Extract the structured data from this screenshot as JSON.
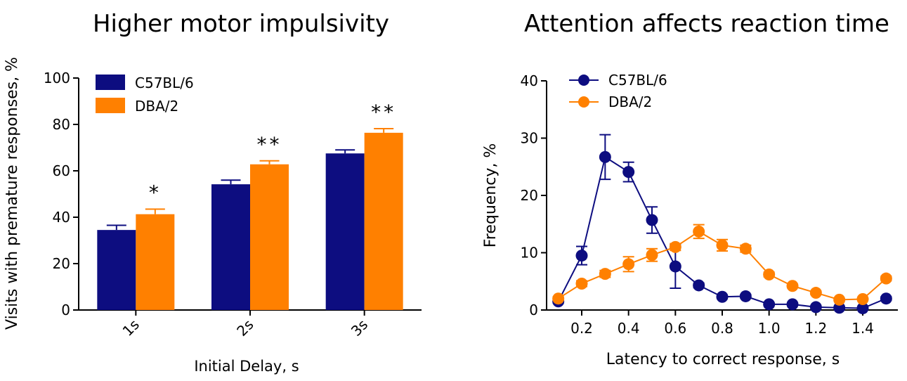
{
  "colors": {
    "c57": "#0d0d80",
    "dba": "#ff8000"
  },
  "chart_data": [
    {
      "type": "bar",
      "title": "Higher motor impulsivity",
      "xlabel": "Initial Delay, s",
      "ylabel": "Visits with premature responses, %",
      "ylim": [
        0,
        100
      ],
      "yticks": [
        0,
        20,
        40,
        60,
        80,
        100
      ],
      "categories": [
        "1s",
        "2s",
        "3s"
      ],
      "legend_position": "top-left",
      "series": [
        {
          "name": "C57BL/6",
          "color": "#0d0d80",
          "values": [
            34.5,
            54.2,
            67.5
          ],
          "errors": [
            2.0,
            1.8,
            1.5
          ]
        },
        {
          "name": "DBA/2",
          "color": "#ff8000",
          "values": [
            41.3,
            62.8,
            76.4
          ],
          "errors": [
            2.2,
            1.5,
            1.8
          ]
        }
      ],
      "significance": [
        "*",
        "**",
        "**"
      ]
    },
    {
      "type": "line",
      "title": "Attention affects reaction time",
      "xlabel": "Latency to correct response, s",
      "ylabel": "Frequency, %",
      "xlim": [
        0.05,
        1.55
      ],
      "ylim": [
        0,
        40
      ],
      "xticks": [
        "0.2",
        "0.4",
        "0.6",
        "0.8",
        "1.0",
        "1.2",
        "1.4"
      ],
      "yticks": [
        0,
        10,
        20,
        30,
        40
      ],
      "legend_position": "top-left",
      "x": [
        0.1,
        0.2,
        0.3,
        0.4,
        0.5,
        0.6,
        0.7,
        0.8,
        0.9,
        1.0,
        1.1,
        1.2,
        1.3,
        1.4,
        1.5
      ],
      "series": [
        {
          "name": "C57BL/6",
          "color": "#0d0d80",
          "values": [
            1.5,
            9.5,
            26.7,
            24.1,
            15.7,
            7.6,
            4.3,
            2.3,
            2.4,
            1.0,
            1.0,
            0.5,
            0.4,
            0.3,
            2.0
          ],
          "errors": [
            0.3,
            1.6,
            3.9,
            1.7,
            2.3,
            3.8,
            0.4,
            0.3,
            0.3,
            0.2,
            0.2,
            0.2,
            0.2,
            0.2,
            0.3
          ]
        },
        {
          "name": "DBA/2",
          "color": "#ff8000",
          "values": [
            2.0,
            4.6,
            6.3,
            8.0,
            9.6,
            11.0,
            13.7,
            11.3,
            10.7,
            6.2,
            4.2,
            3.0,
            1.8,
            1.9,
            5.5
          ],
          "errors": [
            0.3,
            0.5,
            0.6,
            1.3,
            1.1,
            0.6,
            1.2,
            1.0,
            0.6,
            0.4,
            0.3,
            0.3,
            0.2,
            0.2,
            0.4
          ]
        }
      ]
    }
  ]
}
